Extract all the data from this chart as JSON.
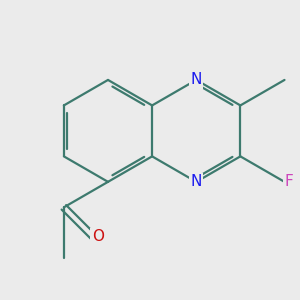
{
  "bg_color": "#ebebeb",
  "bond_color": "#3d7a6e",
  "n_color": "#1a1aee",
  "o_color": "#cc1111",
  "f_color": "#cc44bb",
  "line_width": 1.6,
  "sc": 0.48,
  "ox": 0.02,
  "oy": 0.08,
  "xlim": [
    -1.4,
    1.4
  ],
  "ylim": [
    -1.3,
    1.1
  ]
}
